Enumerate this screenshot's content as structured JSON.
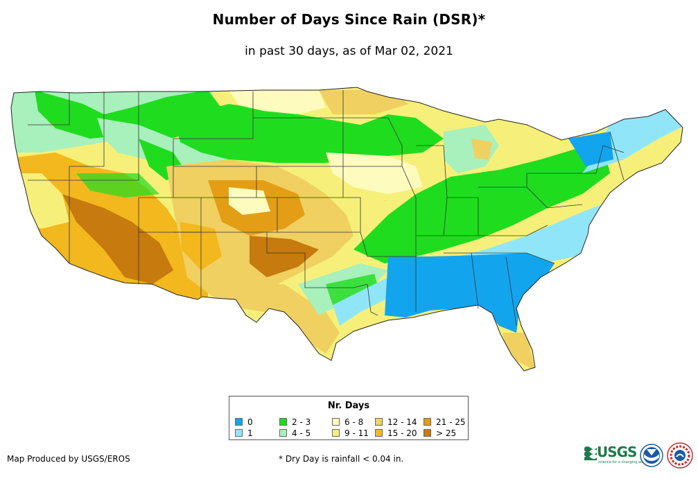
{
  "title": "Number of Days Since Rain (DSR)*",
  "subtitle": "in past 30 days, as of Mar 02, 2021",
  "legend": {
    "title": "Nr. Days",
    "items": [
      {
        "label": "0",
        "color": "#12a5ee"
      },
      {
        "label": "1",
        "color": "#90e6f8"
      },
      {
        "label": "2 - 3",
        "color": "#1fdc1f"
      },
      {
        "label": "4 - 5",
        "color": "#a8f0bc"
      },
      {
        "label": "6 - 8",
        "color": "#fdfbbd"
      },
      {
        "label": "9 - 11",
        "color": "#f6f07a"
      },
      {
        "label": "12 - 14",
        "color": "#f0d060"
      },
      {
        "label": "15 - 20",
        "color": "#f2b81d"
      },
      {
        "label": "21 - 25",
        "color": "#e39e16"
      },
      {
        "label": "> 25",
        "color": "#c77a0e"
      }
    ]
  },
  "footer": {
    "credit": "Map Produced by USGS/EROS",
    "note": "* Dry Day is rainfall < 0.04 in."
  },
  "logos": {
    "usgs": {
      "text": "USGS",
      "tagline": "science for a changing world",
      "color": "#1e7a4a",
      "icon": "usgs-wave-icon"
    },
    "noaa": {
      "icon": "noaa-seal-icon",
      "color": "#1c5aa6"
    },
    "nws": {
      "icon": "nws-seal-icon",
      "color": "#c8262b"
    }
  }
}
